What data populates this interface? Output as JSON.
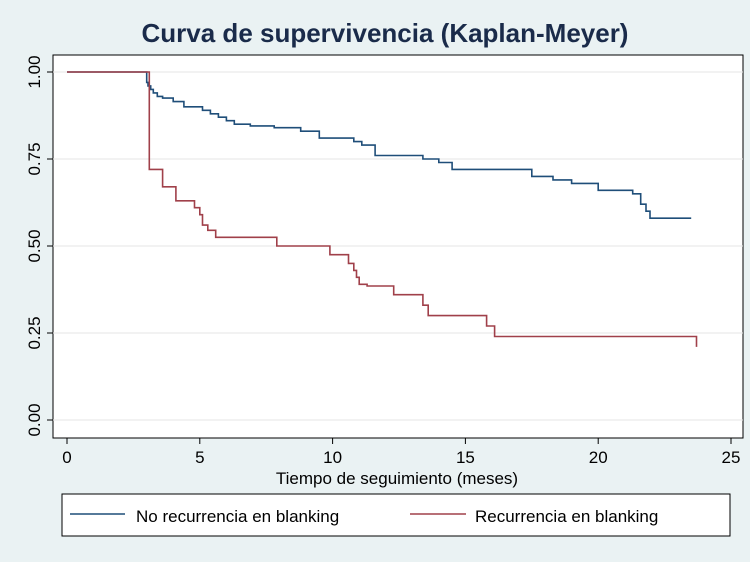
{
  "chart_data": {
    "type": "line",
    "title": "Curva de supervivencia (Kaplan-Meyer)",
    "xlabel": "Tiempo de seguimiento (meses)",
    "ylabel": "",
    "xlim": [
      0,
      25
    ],
    "ylim": [
      0,
      1
    ],
    "x_ticks": [
      "0",
      "5",
      "10",
      "15",
      "20",
      "25"
    ],
    "y_ticks": [
      "0.00",
      "0.25",
      "0.50",
      "0.75",
      "1.00"
    ],
    "grid": "horizontal",
    "legend_position": "bottom",
    "step": true,
    "series": [
      {
        "name": "No recurrencia en blanking",
        "color": "#1f4e79",
        "x": [
          0,
          3.0,
          3.05,
          3.15,
          3.25,
          3.4,
          3.6,
          4.0,
          4.4,
          5.1,
          5.4,
          5.7,
          6.0,
          6.3,
          6.9,
          7.8,
          8.8,
          9.5,
          10.8,
          11.1,
          11.6,
          13.4,
          14.0,
          14.5,
          17.5,
          18.3,
          19.0,
          20.0,
          21.3,
          21.6,
          21.8,
          21.95,
          23.5
        ],
        "y": [
          1.0,
          0.97,
          0.96,
          0.95,
          0.94,
          0.93,
          0.925,
          0.915,
          0.9,
          0.89,
          0.88,
          0.87,
          0.86,
          0.85,
          0.845,
          0.84,
          0.83,
          0.81,
          0.8,
          0.79,
          0.76,
          0.75,
          0.74,
          0.72,
          0.7,
          0.69,
          0.68,
          0.66,
          0.65,
          0.62,
          0.6,
          0.58,
          0.58
        ]
      },
      {
        "name": "Recurrencia en blanking",
        "color": "#a0404a",
        "x": [
          0,
          3.05,
          3.1,
          3.6,
          4.1,
          4.8,
          5.0,
          5.1,
          5.3,
          5.6,
          7.9,
          9.9,
          10.6,
          10.8,
          10.9,
          11.0,
          11.3,
          12.0,
          12.3,
          13.4,
          13.6,
          15.8,
          16.1,
          23.7
        ],
        "y": [
          1.0,
          1.0,
          0.72,
          0.67,
          0.63,
          0.61,
          0.59,
          0.56,
          0.545,
          0.525,
          0.5,
          0.475,
          0.45,
          0.43,
          0.41,
          0.39,
          0.385,
          0.385,
          0.36,
          0.33,
          0.3,
          0.27,
          0.24,
          0.21
        ]
      }
    ]
  }
}
